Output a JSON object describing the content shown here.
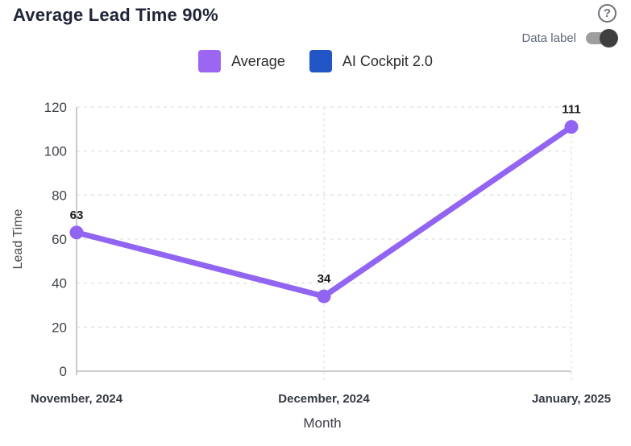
{
  "title": "Average Lead Time 90%",
  "help": {
    "glyph": "?"
  },
  "controls": {
    "data_label_text": "Data label",
    "data_label_toggle_state": "on"
  },
  "legend": {
    "items": [
      {
        "label": "Average",
        "color": "#9d66f2"
      },
      {
        "label": "AI Cockpit 2.0",
        "color": "#2256c7"
      }
    ]
  },
  "chart_data": {
    "type": "line",
    "title": "Average Lead Time 90%",
    "categories": [
      "November, 2024",
      "December, 2024",
      "January, 2025"
    ],
    "series": [
      {
        "name": "Average",
        "color": "#9164f2",
        "values": [
          63,
          34,
          111
        ]
      }
    ],
    "data_labels_visible": true,
    "data_labels": [
      "63",
      "34",
      "111"
    ],
    "xlabel": "Month",
    "ylabel": "Lead Time",
    "ylim": [
      0,
      120
    ],
    "yticks": [
      0,
      20,
      40,
      60,
      80,
      100,
      120
    ],
    "grid": true,
    "grid_color": "#e2e2e2",
    "axis_color": "#bdbdbd",
    "tick_label_color": "#3f434b",
    "category_label_color": "#343942",
    "data_label_color": "#1b1b1b",
    "legend_position": "top"
  }
}
